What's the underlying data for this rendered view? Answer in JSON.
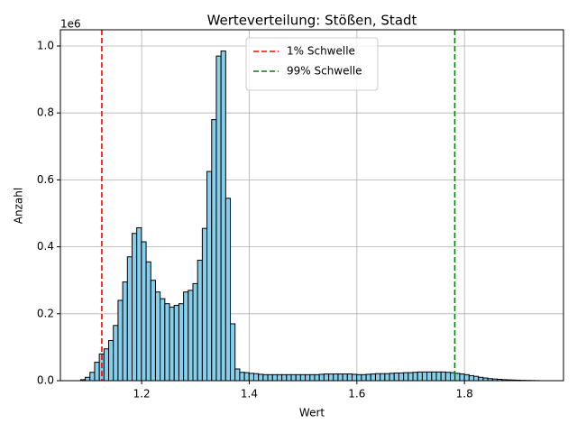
{
  "chart_data": {
    "type": "histogram",
    "title": "Werteverteilung: Stößen, Stadt",
    "x_label": "Wert",
    "y_label": "Anzahl",
    "y_offset_label": "1e6",
    "bins": [
      1.0865,
      1.0952,
      1.1039,
      1.1126,
      1.1213,
      1.13,
      1.1387,
      1.1474,
      1.1561,
      1.1648,
      1.1735,
      1.1822,
      1.1909,
      1.1996,
      1.2083,
      1.217,
      1.2257,
      1.2344,
      1.2431,
      1.2518,
      1.2605,
      1.2692,
      1.2779,
      1.2866,
      1.2953,
      1.304,
      1.3127,
      1.3214,
      1.3301,
      1.3388,
      1.3475,
      1.3562,
      1.3649,
      1.3736,
      1.3823,
      1.391,
      1.3997,
      1.4084,
      1.4171,
      1.4258,
      1.4345,
      1.4432,
      1.4519,
      1.4606,
      1.4693,
      1.478,
      1.4867,
      1.4954,
      1.5041,
      1.5128,
      1.5215,
      1.5302,
      1.5389,
      1.5476,
      1.5563,
      1.565,
      1.5737,
      1.5824,
      1.5911,
      1.5998,
      1.6085,
      1.6172,
      1.6259,
      1.6346,
      1.6433,
      1.652,
      1.6607,
      1.6694,
      1.6781,
      1.6868,
      1.6955,
      1.7042,
      1.7129,
      1.7216,
      1.7303,
      1.739,
      1.7477,
      1.7564,
      1.7651,
      1.7738,
      1.7825,
      1.7912,
      1.7999,
      1.8086,
      1.8173,
      1.826,
      1.8347,
      1.8434,
      1.8521,
      1.8608,
      1.8695,
      1.8782,
      1.8869,
      1.8956,
      1.9043,
      1.913,
      1.9217,
      1.9304,
      1.9391
    ],
    "values": [
      3000,
      10000,
      25000,
      55000,
      80000,
      95000,
      120000,
      165000,
      240000,
      295000,
      370000,
      440000,
      457000,
      415000,
      355000,
      300000,
      265000,
      245000,
      230000,
      220000,
      225000,
      230000,
      265000,
      270000,
      290000,
      360000,
      455000,
      625000,
      780000,
      970000,
      985000,
      545000,
      170000,
      35000,
      25000,
      24000,
      22000,
      21000,
      19000,
      18000,
      18000,
      18000,
      18000,
      18000,
      18000,
      18000,
      18000,
      18000,
      18000,
      18000,
      18000,
      19000,
      20000,
      20000,
      20000,
      20000,
      20000,
      20000,
      19000,
      18000,
      18000,
      19000,
      20000,
      21000,
      21000,
      21000,
      22000,
      23000,
      23000,
      24000,
      24000,
      25000,
      26000,
      26000,
      26000,
      26000,
      26000,
      26000,
      25000,
      24000,
      22000,
      20000,
      18000,
      15000,
      13000,
      10000,
      8000,
      6000,
      5000,
      4000,
      3000,
      2500,
      2000,
      1500,
      1000,
      700,
      500,
      300
    ],
    "color": "#87ceeb",
    "edge_color": "#000000",
    "thresholds": [
      {
        "name": "1% Schwelle",
        "value": 1.126,
        "color": "#ff0000"
      },
      {
        "name": "99% Schwelle",
        "value": 1.782,
        "color": "#008000"
      }
    ],
    "xlim": [
      1.049,
      1.984
    ],
    "ylim": [
      0,
      1048500
    ],
    "xticks": [
      1.2,
      1.4,
      1.6,
      1.8
    ],
    "yticks": [
      {
        "value": 0,
        "label": "0.0"
      },
      {
        "value": 200000,
        "label": "0.2"
      },
      {
        "value": 400000,
        "label": "0.4"
      },
      {
        "value": 600000,
        "label": "0.6"
      },
      {
        "value": 800000,
        "label": "0.8"
      },
      {
        "value": 1000000,
        "label": "1.0"
      }
    ],
    "grid": true,
    "legend": "upper center"
  }
}
